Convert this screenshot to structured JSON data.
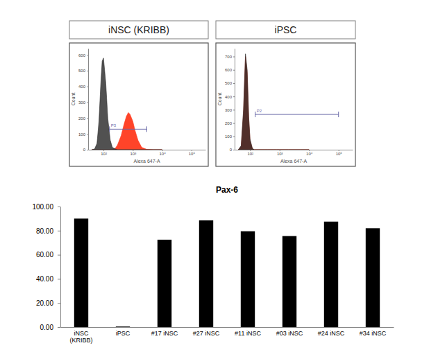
{
  "chart_data": [
    {
      "type": "area",
      "title": "iNSC (KRIBB)",
      "x_label": "Alexa 647-A",
      "y_label": "Count",
      "log": "x",
      "x": [
        40,
        50,
        60,
        70,
        80,
        90,
        100,
        120,
        140,
        170,
        200,
        250,
        300,
        400,
        500,
        600,
        700,
        800,
        1000,
        1200,
        1500,
        2000,
        3000,
        5000,
        10000
      ],
      "series": [
        {
          "color": "#ff3a1e",
          "values": [
            0,
            0,
            0,
            0,
            0,
            0,
            0,
            0,
            0,
            0,
            0,
            8,
            30,
            90,
            160,
            210,
            235,
            225,
            180,
            120,
            60,
            15,
            2,
            0,
            0
          ]
        },
        {
          "color": "#2b2b2b",
          "values": [
            0,
            5,
            40,
            180,
            400,
            560,
            580,
            420,
            200,
            60,
            15,
            5,
            0,
            0,
            0,
            0,
            0,
            0,
            0,
            0,
            0,
            0,
            0,
            0,
            0
          ]
        }
      ],
      "xlim": [
        30,
        300000
      ],
      "xticks": [
        {
          "value": 100,
          "label": "10²"
        },
        {
          "value": 1000,
          "label": "10³"
        },
        {
          "value": 10000,
          "label": "10⁴"
        },
        {
          "value": 100000,
          "label": "10⁵"
        }
      ],
      "ylim": [
        0,
        640
      ],
      "yticks": [
        0,
        100,
        200,
        300,
        400,
        500,
        600
      ],
      "gate": {
        "label": "P3",
        "range": [
          160,
          3000
        ],
        "y": 130
      }
    },
    {
      "type": "area",
      "title": "iPSC",
      "x_label": "Alexa 647-A",
      "y_label": "Count",
      "log": "x",
      "x": [
        40,
        50,
        60,
        70,
        80,
        90,
        100,
        120,
        140,
        170,
        200,
        250,
        300,
        400,
        500,
        600,
        700,
        800,
        1000,
        1200,
        1500,
        2000,
        3000,
        5000,
        10000
      ],
      "series": [
        {
          "color": "#ff3a1e",
          "values": [
            0,
            25,
            280,
            700,
            580,
            240,
            70,
            8,
            0,
            0,
            0,
            0,
            0,
            0,
            0,
            0,
            0,
            0,
            0,
            0,
            0,
            0,
            0,
            0,
            0
          ]
        },
        {
          "color": "#2b2b2b",
          "values": [
            0,
            30,
            300,
            720,
            600,
            250,
            80,
            10,
            0,
            0,
            0,
            0,
            0,
            0,
            0,
            0,
            0,
            0,
            0,
            0,
            0,
            0,
            0,
            0,
            0
          ]
        }
      ],
      "xlim": [
        30,
        300000
      ],
      "xticks": [
        {
          "value": 100,
          "label": "10²"
        },
        {
          "value": 1000,
          "label": "10³"
        },
        {
          "value": 10000,
          "label": "10⁴"
        },
        {
          "value": 100000,
          "label": "10⁵"
        }
      ],
      "ylim": [
        0,
        760
      ],
      "yticks": [
        0,
        100,
        200,
        300,
        400,
        500,
        600,
        700
      ],
      "gate": {
        "label": "P2",
        "range": [
          150,
          100000
        ],
        "y": 265
      }
    },
    {
      "type": "bar",
      "title": "Pax-6",
      "categories": [
        "iNSC (KRIBB)",
        "iPSC",
        "#17 iNSC",
        "#27 iNSC",
        "#11 iNSC",
        "#03 iNSC",
        "#24 iNSC",
        "#34 iNSC"
      ],
      "values": [
        90.0,
        0.5,
        72.5,
        88.5,
        79.5,
        75.5,
        87.5,
        82.0
      ],
      "color": "#000000",
      "ylim": [
        0,
        100
      ],
      "yticks": [
        {
          "value": 0,
          "label": "0.00"
        },
        {
          "value": 20,
          "label": "20.00"
        },
        {
          "value": 40,
          "label": "40.00"
        },
        {
          "value": 60,
          "label": "60.00"
        },
        {
          "value": 80,
          "label": "80.00"
        },
        {
          "value": 100,
          "label": "100.00"
        }
      ],
      "grid": false
    }
  ]
}
